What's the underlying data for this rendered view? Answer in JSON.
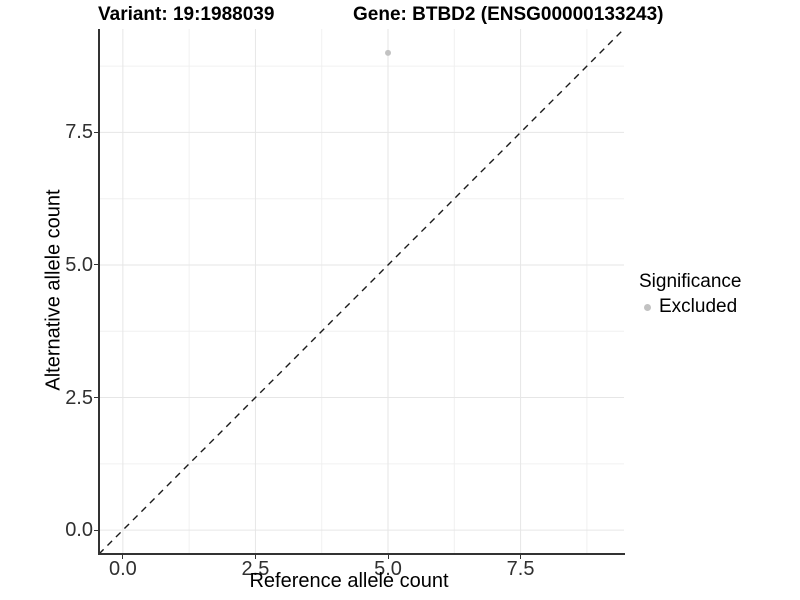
{
  "titles": {
    "variant": "Variant: 19:1988039",
    "gene": "Gene: BTBD2 (ENSG00000133243)"
  },
  "legend": {
    "title": "Significance",
    "items": [
      {
        "label": "Excluded",
        "color": "#c2c2c2"
      }
    ]
  },
  "chart_data": {
    "type": "scatter",
    "title": "Variant: 19:1988039 | Gene: BTBD2 (ENSG00000133243)",
    "xlabel": "Reference allele count",
    "ylabel": "Alternative allele count",
    "xlim": [
      -0.45,
      9.45
    ],
    "ylim": [
      -0.45,
      9.45
    ],
    "x_ticks": {
      "values": [
        0,
        2.5,
        5,
        7.5
      ],
      "labels": [
        "0.0",
        "2.5",
        "5.0",
        "7.5"
      ]
    },
    "y_ticks": {
      "values": [
        0,
        2.5,
        5,
        7.5
      ],
      "labels": [
        "0.0",
        "2.5",
        "5.0",
        "7.5"
      ]
    },
    "minor_ticks": [
      1.25,
      3.75,
      6.25,
      8.75
    ],
    "grid": "major and minor gridlines, light gray on white",
    "legend_position": "right",
    "series": [
      {
        "name": "Excluded",
        "color": "#c2c2c2",
        "marker": "circle",
        "marker_radius": 3,
        "points": [
          {
            "x": 5,
            "y": 9
          }
        ]
      }
    ],
    "reference_line": {
      "kind": "identity y=x",
      "style": "dashed",
      "color": "#1a1a1a",
      "from": {
        "x": -0.45,
        "y": -0.45
      },
      "to": {
        "x": 9.45,
        "y": 9.45
      }
    }
  },
  "style": {
    "background": "#ffffff",
    "grid_major_color": "#e6e6e6",
    "grid_minor_color": "#f0f0f0",
    "axis_line_color": "#333333",
    "tick_label_color": "#303030",
    "text_color": "#000000"
  }
}
